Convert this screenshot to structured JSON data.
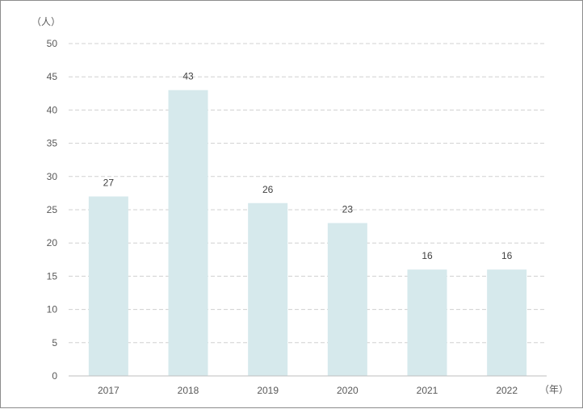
{
  "chart_data": {
    "type": "bar",
    "categories": [
      "2017",
      "2018",
      "2019",
      "2020",
      "2021",
      "2022"
    ],
    "values": [
      27,
      43,
      26,
      23,
      16,
      16
    ],
    "title": "",
    "xlabel": "（年）",
    "ylabel": "（人）",
    "ylim": [
      0,
      50
    ],
    "yticks": [
      0,
      5,
      10,
      15,
      20,
      25,
      30,
      35,
      40,
      45,
      50
    ],
    "grid": true,
    "grid_style": "dashed",
    "bar_color": "#d6e9ec",
    "grid_color": "#d0d0d0",
    "axis_color": "#bfbfbf",
    "data_labels": true,
    "legend": "none"
  }
}
